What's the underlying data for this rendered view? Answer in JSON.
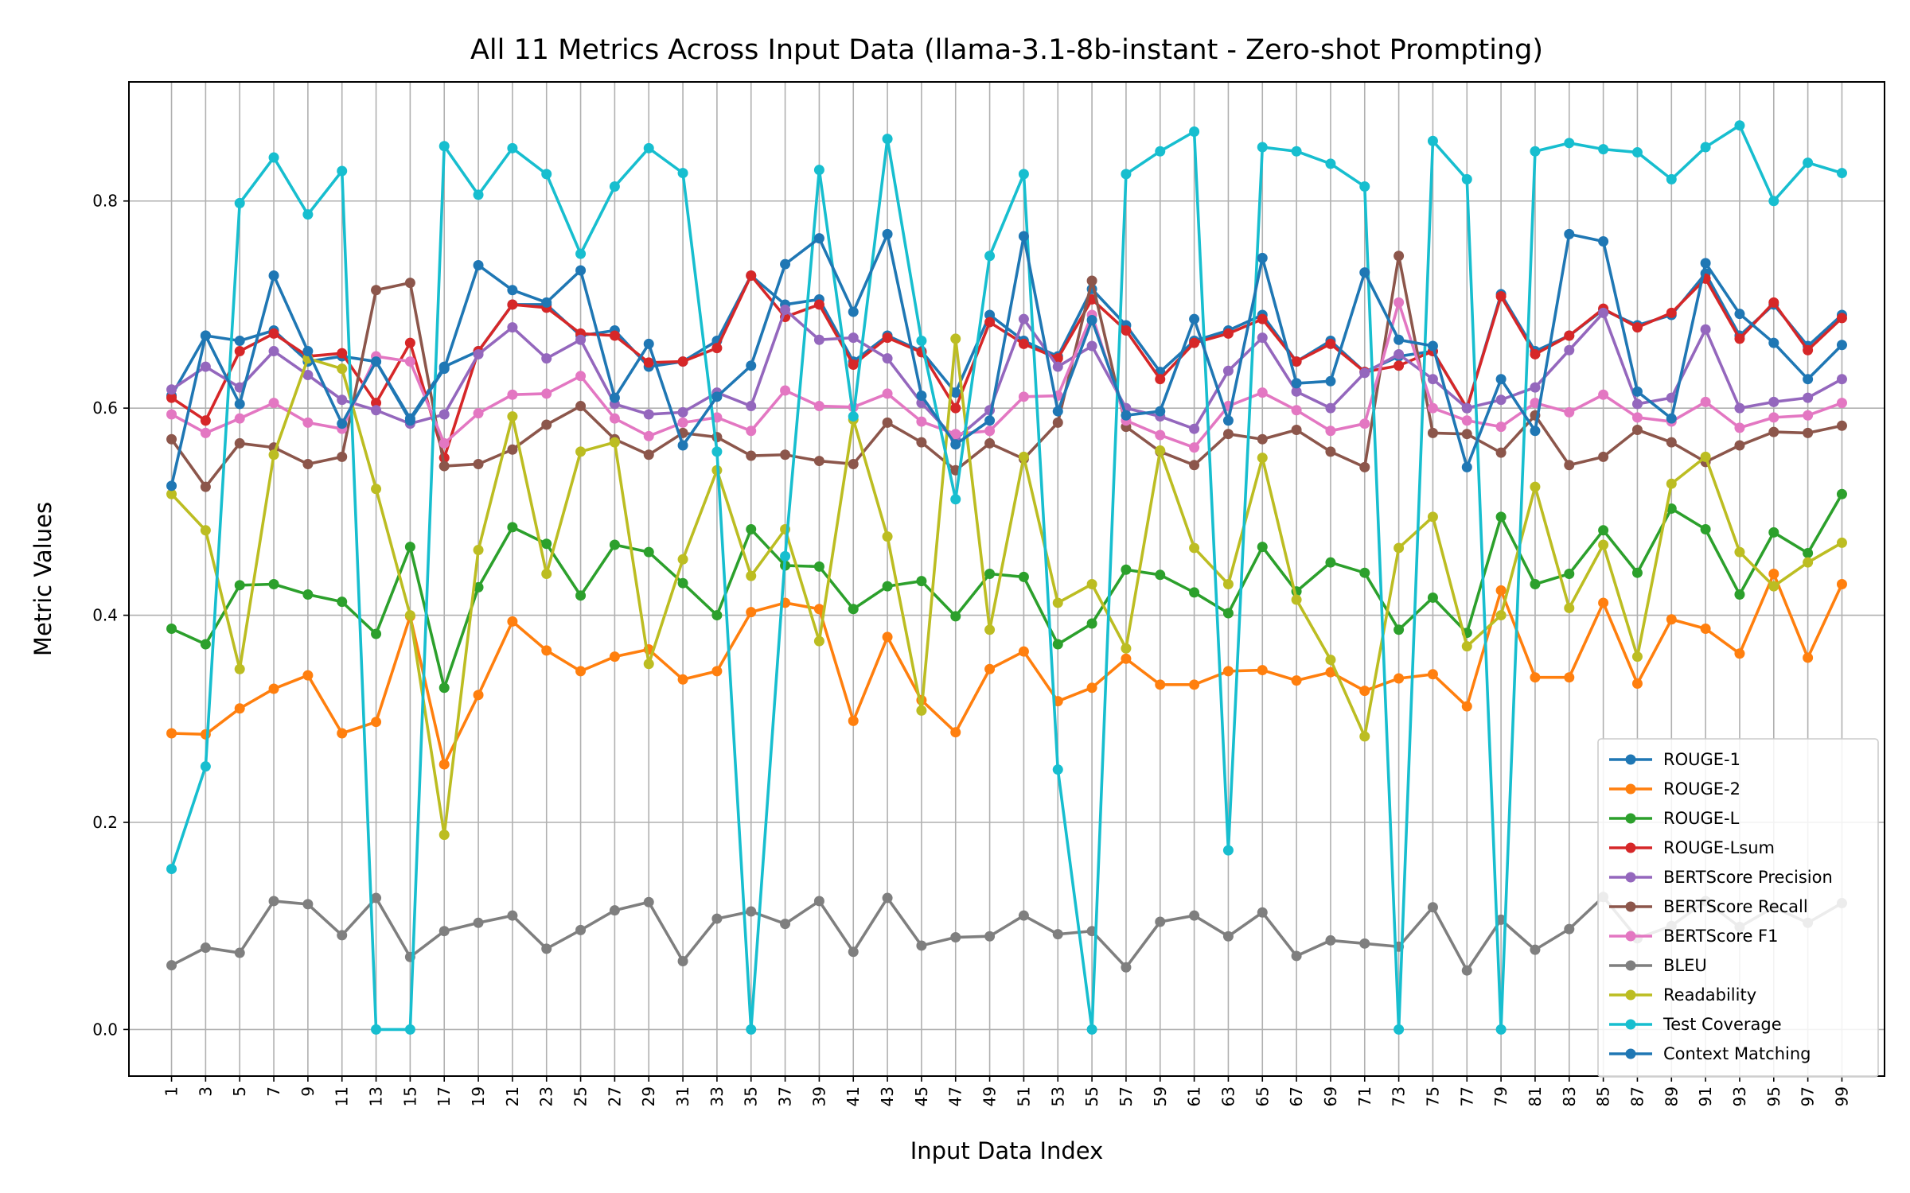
{
  "chart_data": {
    "type": "line",
    "title": "All 11 Metrics Across Input Data (llama-3.1-8b-instant - Zero-shot Prompting)",
    "xlabel": "Input Data Index",
    "ylabel": "Metric Values",
    "xlim": [
      -1.5,
      101.5
    ],
    "ylim": [
      -0.045,
      0.915
    ],
    "yticks": [
      0.0,
      0.2,
      0.4,
      0.6,
      0.8
    ],
    "ytick_labels": [
      "0.0",
      "0.2",
      "0.4",
      "0.6",
      "0.8"
    ],
    "grid": true,
    "legend_position": "lower-right",
    "x": [
      1,
      3,
      5,
      7,
      9,
      11,
      13,
      15,
      17,
      19,
      21,
      23,
      25,
      27,
      29,
      31,
      33,
      35,
      37,
      39,
      41,
      43,
      45,
      47,
      49,
      51,
      53,
      55,
      57,
      59,
      61,
      63,
      65,
      67,
      69,
      71,
      73,
      75,
      77,
      79,
      81,
      83,
      85,
      87,
      89,
      91,
      93,
      95,
      97,
      99
    ],
    "series": [
      {
        "name": "ROUGE-1",
        "color": "#1f77b4",
        "values": [
          0.612,
          0.67,
          0.665,
          0.675,
          0.645,
          0.65,
          0.645,
          0.59,
          0.64,
          0.655,
          0.7,
          0.7,
          0.67,
          0.675,
          0.64,
          0.645,
          0.665,
          0.728,
          0.7,
          0.705,
          0.645,
          0.67,
          0.655,
          0.615,
          0.69,
          0.665,
          0.65,
          0.715,
          0.68,
          0.635,
          0.665,
          0.675,
          0.69,
          0.645,
          0.665,
          0.635,
          0.65,
          0.655,
          0.6,
          0.71,
          0.655,
          0.67,
          0.695,
          0.68,
          0.69,
          0.73,
          0.67,
          0.7,
          0.66,
          0.69
        ]
      },
      {
        "name": "ROUGE-2",
        "color": "#ff7f0e",
        "values": [
          0.286,
          0.285,
          0.31,
          0.329,
          0.342,
          0.286,
          0.297,
          0.399,
          0.256,
          0.323,
          0.394,
          0.366,
          0.346,
          0.36,
          0.367,
          0.338,
          0.346,
          0.403,
          0.412,
          0.406,
          0.298,
          0.379,
          0.318,
          0.287,
          0.348,
          0.365,
          0.317,
          0.33,
          0.358,
          0.333,
          0.333,
          0.346,
          0.347,
          0.337,
          0.345,
          0.327,
          0.339,
          0.343,
          0.312,
          0.424,
          0.34,
          0.34,
          0.412,
          0.334,
          0.396,
          0.387,
          0.363,
          0.44,
          0.359,
          0.43
        ]
      },
      {
        "name": "ROUGE-L",
        "color": "#2ca02c",
        "values": [
          0.387,
          0.372,
          0.429,
          0.43,
          0.42,
          0.413,
          0.382,
          0.466,
          0.33,
          0.427,
          0.485,
          0.469,
          0.419,
          0.468,
          0.461,
          0.431,
          0.4,
          0.483,
          0.448,
          0.447,
          0.406,
          0.428,
          0.433,
          0.399,
          0.44,
          0.437,
          0.372,
          0.392,
          0.444,
          0.439,
          0.422,
          0.402,
          0.466,
          0.423,
          0.451,
          0.441,
          0.386,
          0.417,
          0.383,
          0.495,
          0.43,
          0.44,
          0.482,
          0.441,
          0.503,
          0.483,
          0.42,
          0.48,
          0.46,
          0.517
        ]
      },
      {
        "name": "ROUGE-Lsum",
        "color": "#d62728",
        "values": [
          0.61,
          0.588,
          0.655,
          0.672,
          0.65,
          0.653,
          0.605,
          0.663,
          0.552,
          0.655,
          0.7,
          0.697,
          0.672,
          0.67,
          0.644,
          0.645,
          0.658,
          0.728,
          0.688,
          0.7,
          0.642,
          0.668,
          0.654,
          0.6,
          0.683,
          0.662,
          0.648,
          0.705,
          0.675,
          0.628,
          0.663,
          0.672,
          0.686,
          0.645,
          0.662,
          0.635,
          0.641,
          0.655,
          0.6,
          0.708,
          0.652,
          0.67,
          0.696,
          0.678,
          0.692,
          0.725,
          0.667,
          0.702,
          0.656,
          0.687
        ]
      },
      {
        "name": "BERTScore Precision",
        "color": "#9467bd",
        "values": [
          0.618,
          0.64,
          0.62,
          0.655,
          0.632,
          0.608,
          0.598,
          0.585,
          0.594,
          0.652,
          0.678,
          0.648,
          0.666,
          0.604,
          0.594,
          0.596,
          0.615,
          0.602,
          0.695,
          0.666,
          0.668,
          0.648,
          0.605,
          0.57,
          0.598,
          0.686,
          0.64,
          0.66,
          0.6,
          0.592,
          0.58,
          0.636,
          0.668,
          0.616,
          0.6,
          0.634,
          0.652,
          0.628,
          0.6,
          0.608,
          0.62,
          0.656,
          0.692,
          0.604,
          0.61,
          0.676,
          0.6,
          0.606,
          0.61,
          0.628
        ]
      },
      {
        "name": "BERTScore Recall",
        "color": "#8c564b",
        "values": [
          0.57,
          0.524,
          0.566,
          0.562,
          0.546,
          0.553,
          0.714,
          0.721,
          0.544,
          0.546,
          0.56,
          0.584,
          0.602,
          0.57,
          0.555,
          0.576,
          0.572,
          0.554,
          0.555,
          0.549,
          0.546,
          0.586,
          0.567,
          0.54,
          0.566,
          0.551,
          0.586,
          0.723,
          0.582,
          0.558,
          0.545,
          0.575,
          0.57,
          0.579,
          0.558,
          0.543,
          0.747,
          0.576,
          0.575,
          0.557,
          0.593,
          0.545,
          0.553,
          0.579,
          0.567,
          0.548,
          0.564,
          0.577,
          0.576,
          0.583
        ]
      },
      {
        "name": "BERTScore F1",
        "color": "#e377c2",
        "values": [
          0.594,
          0.576,
          0.59,
          0.605,
          0.586,
          0.58,
          0.65,
          0.645,
          0.566,
          0.595,
          0.613,
          0.614,
          0.631,
          0.59,
          0.573,
          0.586,
          0.591,
          0.578,
          0.617,
          0.602,
          0.601,
          0.614,
          0.587,
          0.575,
          0.578,
          0.611,
          0.612,
          0.69,
          0.588,
          0.574,
          0.562,
          0.602,
          0.615,
          0.598,
          0.578,
          0.585,
          0.702,
          0.6,
          0.588,
          0.582,
          0.605,
          0.596,
          0.613,
          0.591,
          0.587,
          0.606,
          0.581,
          0.591,
          0.593,
          0.605
        ]
      },
      {
        "name": "BLEU",
        "color": "#7f7f7f",
        "values": [
          0.062,
          0.079,
          0.074,
          0.124,
          0.121,
          0.091,
          0.127,
          0.07,
          0.095,
          0.103,
          0.11,
          0.078,
          0.096,
          0.115,
          0.123,
          0.066,
          0.107,
          0.114,
          0.102,
          0.124,
          0.075,
          0.127,
          0.081,
          0.089,
          0.09,
          0.11,
          0.092,
          0.095,
          0.06,
          0.104,
          0.11,
          0.09,
          0.113,
          0.071,
          0.086,
          0.083,
          0.08,
          0.118,
          0.057,
          0.106,
          0.077,
          0.097,
          0.128,
          0.088,
          0.1,
          0.124,
          0.099,
          0.118,
          0.103,
          0.122
        ]
      },
      {
        "name": "Readability",
        "color": "#bcbd22",
        "values": [
          0.517,
          0.482,
          0.348,
          0.555,
          0.648,
          0.638,
          0.522,
          0.4,
          0.188,
          0.463,
          0.592,
          0.44,
          0.558,
          0.567,
          0.353,
          0.454,
          0.54,
          0.438,
          0.483,
          0.375,
          0.589,
          0.476,
          0.308,
          0.667,
          0.386,
          0.553,
          0.412,
          0.43,
          0.368,
          0.559,
          0.465,
          0.43,
          0.552,
          0.415,
          0.357,
          0.283,
          0.465,
          0.495,
          0.37,
          0.4,
          0.524,
          0.407,
          0.468,
          0.36,
          0.527,
          0.553,
          0.461,
          0.428,
          0.451,
          0.47
        ]
      },
      {
        "name": "Test Coverage",
        "color": "#17becf",
        "values": [
          0.155,
          0.254,
          0.798,
          0.842,
          0.787,
          0.829,
          0.0,
          0.0,
          0.853,
          0.806,
          0.851,
          0.826,
          0.749,
          0.814,
          0.851,
          0.827,
          0.558,
          0.0,
          0.457,
          0.83,
          0.592,
          0.86,
          0.665,
          0.512,
          0.747,
          0.826,
          0.251,
          0.0,
          0.826,
          0.848,
          0.867,
          0.173,
          0.852,
          0.848,
          0.836,
          0.814,
          0.0,
          0.858,
          0.821,
          0.0,
          0.848,
          0.856,
          0.85,
          0.847,
          0.821,
          0.852,
          0.873,
          0.8,
          0.837,
          0.827
        ]
      },
      {
        "name": "Context Matching",
        "color": "#1f77b4",
        "values": [
          0.525,
          0.67,
          0.604,
          0.728,
          0.655,
          0.585,
          0.645,
          0.588,
          0.638,
          0.738,
          0.714,
          0.702,
          0.733,
          0.61,
          0.662,
          0.564,
          0.611,
          0.641,
          0.739,
          0.764,
          0.693,
          0.768,
          0.612,
          0.565,
          0.588,
          0.766,
          0.597,
          0.685,
          0.593,
          0.597,
          0.686,
          0.588,
          0.745,
          0.624,
          0.626,
          0.731,
          0.666,
          0.66,
          0.543,
          0.628,
          0.578,
          0.768,
          0.761,
          0.616,
          0.59,
          0.74,
          0.691,
          0.663,
          0.628,
          0.661
        ]
      }
    ]
  }
}
